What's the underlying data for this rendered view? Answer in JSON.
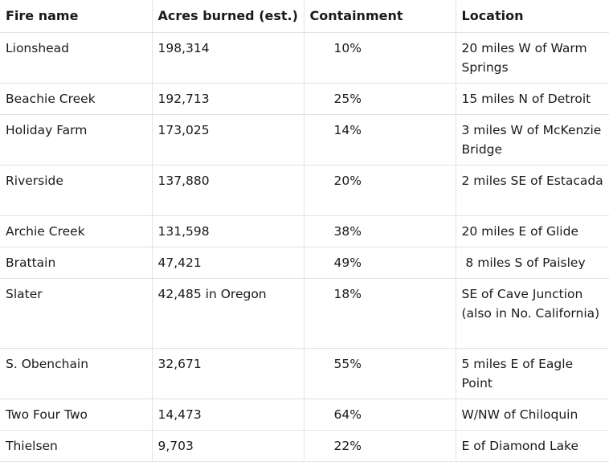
{
  "table": {
    "headers": [
      "Fire name",
      "Acres burned (est.)",
      "Containment",
      "Location"
    ],
    "rows": [
      {
        "name": "Lionshead",
        "acres": "198,314",
        "containment": "10%",
        "location": "20 miles W of Warm Springs"
      },
      {
        "name": "Beachie Creek",
        "acres": "192,713",
        "containment": "25%",
        "location": "15 miles N of Detroit"
      },
      {
        "name": "Holiday Farm",
        "acres": "173,025",
        "containment": "14%",
        "location": "3 miles W of McKenzie Bridge"
      },
      {
        "name": "Riverside",
        "acres": "137,880",
        "containment": "20%",
        "location": "2 miles SE of Estacada"
      },
      {
        "name": "Archie Creek",
        "acres": "131,598",
        "containment": "38%",
        "location": "20 miles E of Glide"
      },
      {
        "name": "Brattain",
        "acres": "47,421",
        "containment": "49%",
        "location": " 8 miles S of Paisley"
      },
      {
        "name": "Slater",
        "acres": "42,485 in Oregon",
        "containment": "18%",
        "location": "SE of Cave Junction (also in No. California)"
      },
      {
        "name": "S. Obenchain",
        "acres": "32,671",
        "containment": "55%",
        "location": "5 miles E of Eagle Point"
      },
      {
        "name": "Two Four Two",
        "acres": "14,473",
        "containment": "64%",
        "location": "W/NW of Chiloquin"
      },
      {
        "name": "Thielsen",
        "acres": "9,703",
        "containment": "22%",
        "location": "E of Diamond Lake"
      }
    ]
  }
}
